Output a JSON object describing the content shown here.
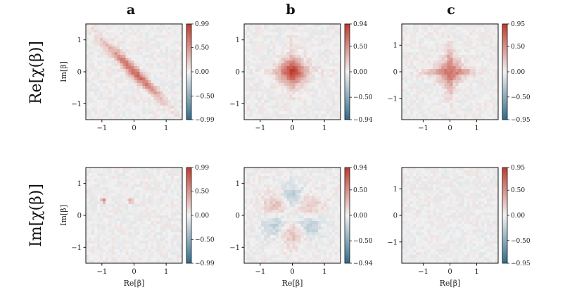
{
  "figure": {
    "column_labels": [
      "a",
      "b",
      "c"
    ],
    "row_labels": [
      "Re[χ(β)]",
      "Im[χ(β)]"
    ],
    "x_axis_label": "Re[β]",
    "y_axis_label": "Im[β]"
  },
  "colors": {
    "negative": "#2e6b8a",
    "zero": "#f2f2f2",
    "positive": "#c0392b",
    "frame": "#111111"
  },
  "chart_data": [
    {
      "type": "heatmap",
      "row": "Re",
      "column": "a",
      "xlim": [
        -1.5,
        1.5
      ],
      "ylim": [
        -1.5,
        1.5
      ],
      "xticks": [
        -1,
        0,
        1
      ],
      "yticks": [
        -1,
        0,
        1
      ],
      "show_xlabel": false,
      "show_ylabel": true,
      "colorbar": {
        "range": [
          -0.99,
          0.99
        ],
        "ticks": [
          0.99,
          0.5,
          0.0,
          -0.5,
          -0.99
        ],
        "tick_labels": [
          "0.99",
          "0.50",
          "0.00",
          "−0.50",
          "−0.99"
        ]
      },
      "pattern": {
        "kind": "diagonal_ridge",
        "description": "elongated positive ridge from top-left to bottom-right",
        "peak": 0.75
      }
    },
    {
      "type": "heatmap",
      "row": "Re",
      "column": "b",
      "xlim": [
        -1.5,
        1.5
      ],
      "ylim": [
        -1.5,
        1.5
      ],
      "xticks": [
        -1,
        0,
        1
      ],
      "yticks": [
        -1,
        0,
        1
      ],
      "show_xlabel": false,
      "show_ylabel": false,
      "colorbar": {
        "range": [
          -0.94,
          0.94
        ],
        "ticks": [
          0.94,
          0.5,
          0.0,
          -0.5,
          -0.94
        ],
        "tick_labels": [
          "0.94",
          "0.50",
          "0.00",
          "−0.50",
          "−0.94"
        ]
      },
      "pattern": {
        "kind": "central_blob",
        "description": "round positive blob centered at origin with faint star arms",
        "peak": 0.8
      }
    },
    {
      "type": "heatmap",
      "row": "Re",
      "column": "c",
      "xlim": [
        -1.8,
        1.8
      ],
      "ylim": [
        -1.8,
        1.8
      ],
      "xticks": [
        -1,
        0,
        1
      ],
      "yticks": [
        -1,
        0,
        1
      ],
      "show_xlabel": false,
      "show_ylabel": false,
      "colorbar": {
        "range": [
          -0.95,
          0.95
        ],
        "ticks": [
          0.95,
          0.5,
          0.0,
          -0.5,
          -0.95
        ],
        "tick_labels": [
          "0.95",
          "0.50",
          "0.00",
          "−0.50",
          "−0.95"
        ]
      },
      "pattern": {
        "kind": "star",
        "description": "four-armed positive star centered near origin",
        "peak": 0.7
      }
    },
    {
      "type": "heatmap",
      "row": "Im",
      "column": "a",
      "xlim": [
        -1.5,
        1.5
      ],
      "ylim": [
        -1.5,
        1.5
      ],
      "xticks": [
        -1,
        0,
        1
      ],
      "yticks": [
        -1,
        0,
        1
      ],
      "show_xlabel": true,
      "show_ylabel": true,
      "colorbar": {
        "range": [
          -0.99,
          0.99
        ],
        "ticks": [
          0.99,
          0.5,
          0.0,
          -0.5,
          -0.99
        ],
        "tick_labels": [
          "0.99",
          "0.50",
          "0.00",
          "−0.50",
          "−0.99"
        ]
      },
      "pattern": {
        "kind": "noise_spots",
        "description": "mostly noise with two small positive spots",
        "spots": [
          [
            -0.95,
            0.45,
            0.85
          ],
          [
            -0.1,
            0.45,
            0.5
          ]
        ]
      }
    },
    {
      "type": "heatmap",
      "row": "Im",
      "column": "b",
      "xlim": [
        -1.5,
        1.5
      ],
      "ylim": [
        -1.5,
        1.5
      ],
      "xticks": [
        -1,
        0,
        1
      ],
      "yticks": [
        -1,
        0,
        1
      ],
      "show_xlabel": true,
      "show_ylabel": false,
      "colorbar": {
        "range": [
          -0.94,
          0.94
        ],
        "ticks": [
          0.94,
          0.5,
          0.0,
          -0.5,
          -0.94
        ],
        "tick_labels": [
          "0.94",
          "0.50",
          "0.00",
          "−0.50",
          "−0.94"
        ]
      },
      "pattern": {
        "kind": "sixfold",
        "description": "faint alternating positive and negative lobes around origin",
        "peak": 0.25
      }
    },
    {
      "type": "heatmap",
      "row": "Im",
      "column": "c",
      "xlim": [
        -1.8,
        1.8
      ],
      "ylim": [
        -1.8,
        1.8
      ],
      "xticks": [
        -1,
        0,
        1
      ],
      "yticks": [
        -1,
        0,
        1
      ],
      "show_xlabel": true,
      "show_ylabel": false,
      "colorbar": {
        "range": [
          -0.95,
          0.95
        ],
        "ticks": [
          0.95,
          0.5,
          0.0,
          -0.5,
          -0.95
        ],
        "tick_labels": [
          "0.95",
          "0.50",
          "0.00",
          "−0.50",
          "−0.95"
        ]
      },
      "pattern": {
        "kind": "noise",
        "description": "uniform low-level noise",
        "peak": 0.05
      }
    }
  ]
}
